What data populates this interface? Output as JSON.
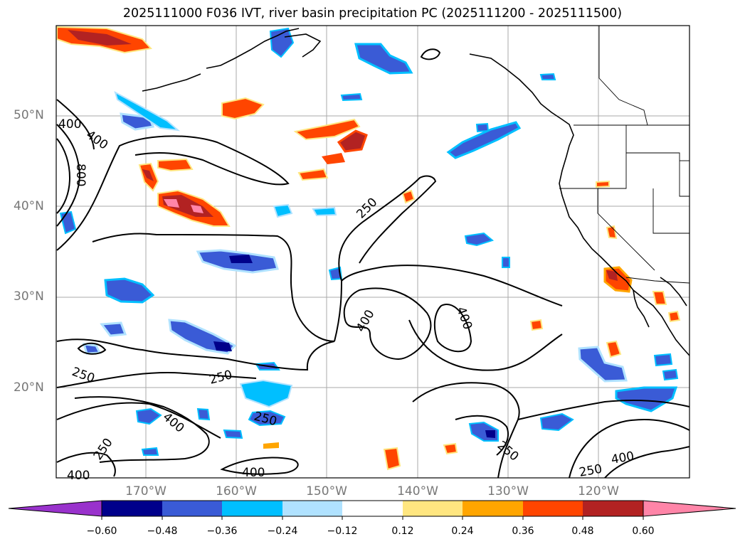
{
  "title": "2025111000 F036 IVT, river basin precipitation PC (2025111200 - 2025111500)",
  "latitude_labels": [
    "50°N",
    "40°N",
    "30°N",
    "20°N"
  ],
  "longitude_labels": [
    "170°W",
    "160°W",
    "150°W",
    "140°W",
    "130°W",
    "120°W"
  ],
  "ivt_contour_labels": [
    "400",
    "400",
    "800",
    "250",
    "250",
    "250",
    "400",
    "400",
    "400",
    "250",
    "250",
    "400",
    "400",
    "250",
    "250",
    "400"
  ],
  "colorbar": {
    "tick_labels": [
      "−0.60",
      "−0.48",
      "−0.36",
      "−0.24",
      "−0.12",
      "0.12",
      "0.24",
      "0.36",
      "0.48",
      "0.60"
    ],
    "colors": [
      "#9932cc",
      "#00008b",
      "#3a5bd6",
      "#00bfff",
      "#b0e2ff",
      "#ffffff",
      "#ffe680",
      "#ffa500",
      "#ff4500",
      "#b22222",
      "#ff85a8"
    ]
  },
  "colors": {
    "land_outline": "#000000",
    "gridline": "#aaaaaa",
    "label_gray": "#777777"
  }
}
